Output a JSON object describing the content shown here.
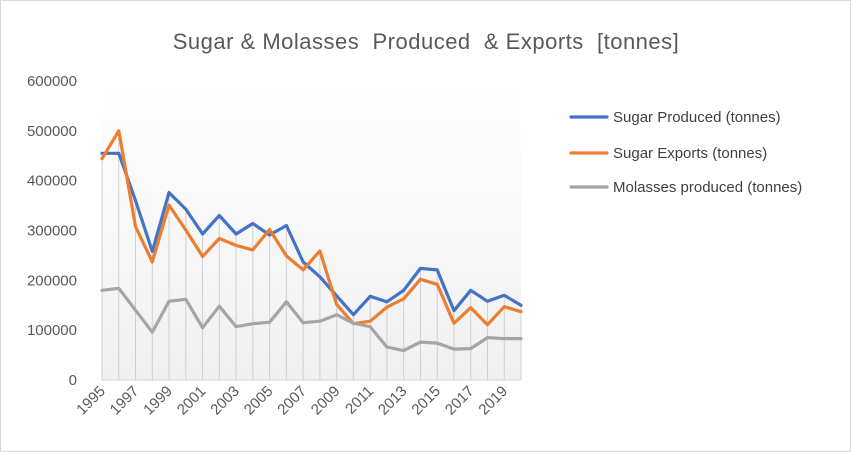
{
  "chart_data": {
    "type": "line",
    "title": "Sugar & Molasses  Produced  & Exports  [tonnes]",
    "xlabel": "",
    "ylabel": "",
    "x": [
      1995,
      1996,
      1997,
      1998,
      1999,
      2000,
      2001,
      2002,
      2003,
      2004,
      2005,
      2006,
      2007,
      2008,
      2009,
      2010,
      2011,
      2012,
      2013,
      2014,
      2015,
      2016,
      2017,
      2018,
      2019,
      2020
    ],
    "x_tick_labels": [
      "1995",
      "1997",
      "1999",
      "2001",
      "2003",
      "2005",
      "2007",
      "2009",
      "2011",
      "2013",
      "2015",
      "2017",
      "2019"
    ],
    "y_tick_labels": [
      "0",
      "100000",
      "200000",
      "300000",
      "400000",
      "500000",
      "600000"
    ],
    "ylim": [
      0,
      600000
    ],
    "grid": false,
    "drop_lines": true,
    "legend_position": "right",
    "series": [
      {
        "name": "Sugar Produced (tonnes)",
        "color": "#4472c4",
        "values": [
          455000,
          455000,
          360000,
          258000,
          376000,
          343000,
          293000,
          330000,
          293000,
          314000,
          291000,
          310000,
          237000,
          207000,
          169000,
          131000,
          168000,
          157000,
          180000,
          224000,
          221000,
          139000,
          180000,
          158000,
          170000,
          150000
        ]
      },
      {
        "name": "Sugar Exports (tonnes)",
        "color": "#ed7d31",
        "values": [
          444000,
          500000,
          308000,
          237000,
          351000,
          301000,
          248000,
          284000,
          270000,
          261000,
          302000,
          249000,
          221000,
          259000,
          152000,
          113000,
          118000,
          146000,
          163000,
          202000,
          192000,
          114000,
          145000,
          111000,
          147000,
          137000
        ]
      },
      {
        "name": "Molasses produced (tonnes)",
        "color": "#a5a5a5",
        "values": [
          180000,
          184000,
          140000,
          96000,
          158000,
          162000,
          105000,
          148000,
          107000,
          113000,
          116000,
          157000,
          115000,
          118000,
          131000,
          114000,
          107000,
          66000,
          59000,
          76000,
          74000,
          62000,
          63000,
          85000,
          83000,
          83000
        ]
      }
    ]
  }
}
